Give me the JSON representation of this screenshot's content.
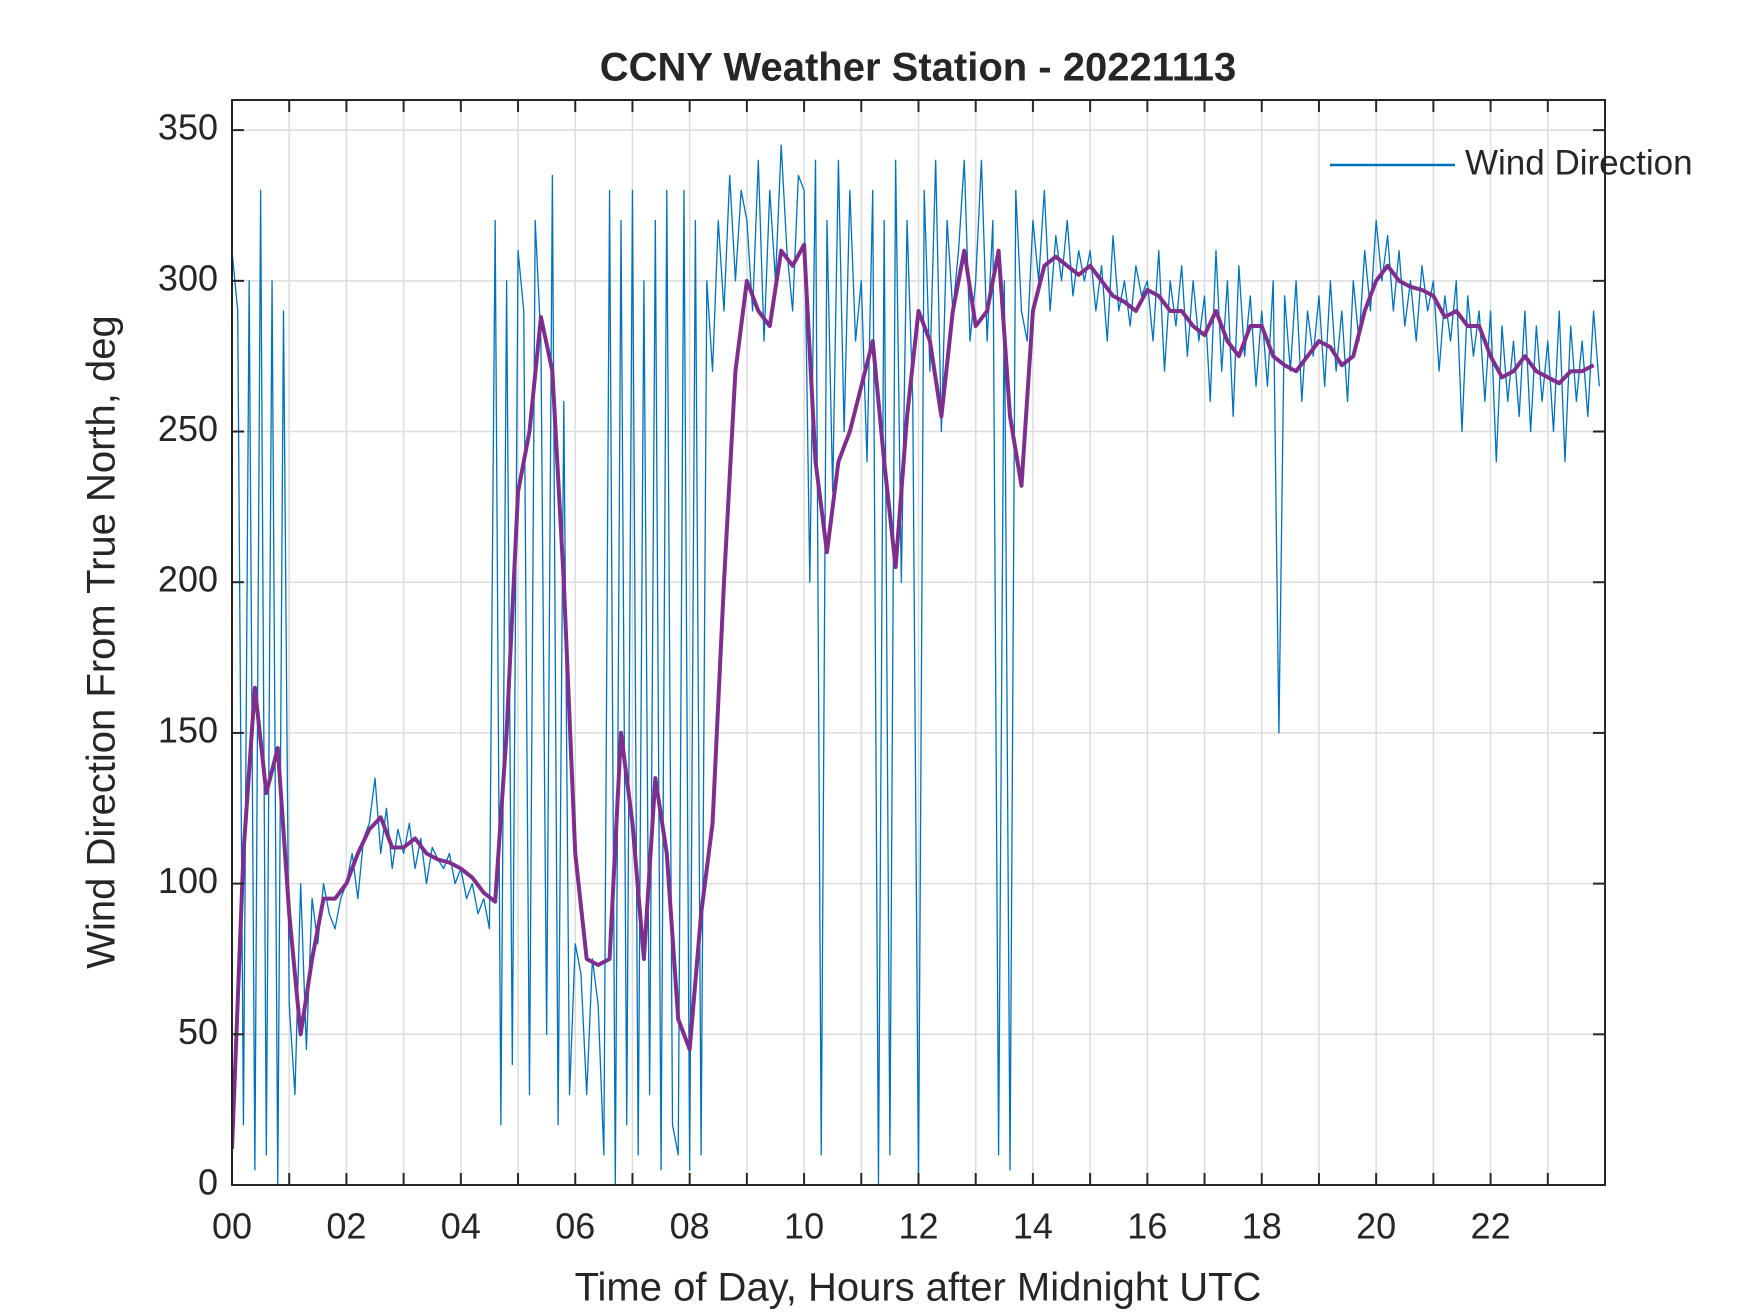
{
  "chart_data": {
    "type": "line",
    "title": "CCNY Weather Station - 20221113",
    "xlabel": "Time of Day, Hours after Midnight UTC",
    "ylabel": "Wind Direction From True North, deg",
    "xlim": [
      0,
      24
    ],
    "ylim": [
      0,
      360
    ],
    "xticks": [
      {
        "value": 0,
        "label": "00"
      },
      {
        "value": 2,
        "label": "02"
      },
      {
        "value": 4,
        "label": "04"
      },
      {
        "value": 6,
        "label": "06"
      },
      {
        "value": 8,
        "label": "08"
      },
      10,
      12,
      14,
      16,
      18,
      20,
      22
    ],
    "xminor_ticks": [
      1,
      3,
      5,
      7,
      9,
      11,
      13,
      15,
      17,
      19,
      21,
      23
    ],
    "yticks": [
      0,
      50,
      100,
      150,
      200,
      250,
      300,
      350
    ],
    "grid": true,
    "legend": "upper right",
    "series": [
      {
        "name": "Wind Direction",
        "color": "#0072bd",
        "width": 1.3,
        "x": [
          0,
          0.1,
          0.2,
          0.3,
          0.4,
          0.5,
          0.6,
          0.7,
          0.8,
          0.9,
          1,
          1.1,
          1.2,
          1.3,
          1.4,
          1.5,
          1.6,
          1.7,
          1.8,
          1.9,
          2,
          2.1,
          2.2,
          2.3,
          2.4,
          2.5,
          2.6,
          2.7,
          2.8,
          2.9,
          3,
          3.1,
          3.2,
          3.3,
          3.4,
          3.5,
          3.6,
          3.7,
          3.8,
          3.9,
          4,
          4.1,
          4.2,
          4.3,
          4.4,
          4.5,
          4.6,
          4.7,
          4.8,
          4.9,
          5,
          5.1,
          5.2,
          5.3,
          5.4,
          5.5,
          5.6,
          5.7,
          5.8,
          5.9,
          6,
          6.1,
          6.2,
          6.3,
          6.4,
          6.5,
          6.6,
          6.7,
          6.8,
          6.9,
          7,
          7.1,
          7.2,
          7.3,
          7.4,
          7.5,
          7.6,
          7.7,
          7.8,
          7.9,
          8,
          8.1,
          8.2,
          8.3,
          8.4,
          8.5,
          8.6,
          8.7,
          8.8,
          8.9,
          9,
          9.1,
          9.2,
          9.3,
          9.4,
          9.5,
          9.6,
          9.7,
          9.8,
          9.9,
          10,
          10.1,
          10.2,
          10.3,
          10.4,
          10.5,
          10.6,
          10.7,
          10.8,
          10.9,
          11,
          11.1,
          11.2,
          11.3,
          11.4,
          11.5,
          11.6,
          11.7,
          11.8,
          11.9,
          12,
          12.1,
          12.2,
          12.3,
          12.4,
          12.5,
          12.6,
          12.7,
          12.8,
          12.9,
          13,
          13.1,
          13.2,
          13.3,
          13.4,
          13.5,
          13.6,
          13.7,
          13.8,
          13.9,
          14,
          14.1,
          14.2,
          14.3,
          14.4,
          14.5,
          14.6,
          14.7,
          14.8,
          14.9,
          15,
          15.1,
          15.2,
          15.3,
          15.4,
          15.5,
          15.6,
          15.7,
          15.8,
          15.9,
          16,
          16.1,
          16.2,
          16.3,
          16.4,
          16.5,
          16.6,
          16.7,
          16.8,
          16.9,
          17,
          17.1,
          17.2,
          17.3,
          17.4,
          17.5,
          17.6,
          17.7,
          17.8,
          17.9,
          18,
          18.1,
          18.2,
          18.3,
          18.4,
          18.5,
          18.6,
          18.7,
          18.8,
          18.9,
          19,
          19.1,
          19.2,
          19.3,
          19.4,
          19.5,
          19.6,
          19.7,
          19.8,
          19.9,
          20,
          20.1,
          20.2,
          20.3,
          20.4,
          20.5,
          20.6,
          20.7,
          20.8,
          20.9,
          21,
          21.1,
          21.2,
          21.3,
          21.4,
          21.5,
          21.6,
          21.7,
          21.8,
          21.9,
          22,
          22.1,
          22.2,
          22.3,
          22.4,
          22.5,
          22.6,
          22.7,
          22.8,
          22.9,
          23,
          23.1,
          23.2,
          23.3,
          23.4,
          23.5,
          23.6,
          23.7,
          23.8,
          23.9
        ],
        "values": [
          310,
          290,
          20,
          300,
          5,
          330,
          10,
          300,
          0,
          290,
          60,
          30,
          100,
          45,
          95,
          80,
          100,
          90,
          85,
          95,
          100,
          110,
          95,
          115,
          120,
          135,
          110,
          125,
          105,
          118,
          110,
          120,
          105,
          115,
          100,
          112,
          108,
          105,
          110,
          100,
          105,
          95,
          100,
          90,
          95,
          85,
          320,
          20,
          300,
          40,
          310,
          290,
          30,
          320,
          280,
          50,
          335,
          20,
          260,
          30,
          80,
          70,
          30,
          75,
          60,
          10,
          330,
          0,
          320,
          20,
          330,
          10,
          300,
          30,
          320,
          5,
          330,
          20,
          10,
          330,
          5,
          320,
          10,
          300,
          270,
          320,
          290,
          335,
          300,
          330,
          320,
          290,
          340,
          280,
          330,
          300,
          345,
          310,
          290,
          335,
          330,
          200,
          340,
          10,
          320,
          230,
          340,
          250,
          330,
          280,
          300,
          240,
          330,
          0,
          320,
          10,
          340,
          200,
          320,
          260,
          0,
          330,
          270,
          340,
          250,
          320,
          290,
          310,
          340,
          280,
          300,
          340,
          280,
          320,
          10,
          300,
          5,
          330,
          290,
          280,
          320,
          300,
          330,
          290,
          315,
          300,
          320,
          295,
          310,
          300,
          310,
          290,
          305,
          280,
          315,
          290,
          300,
          285,
          305,
          295,
          300,
          280,
          310,
          270,
          300,
          285,
          305,
          275,
          300,
          280,
          295,
          260,
          310,
          270,
          300,
          255,
          305,
          275,
          295,
          265,
          290,
          265,
          300,
          150,
          295,
          270,
          300,
          260,
          290,
          275,
          295,
          265,
          300,
          270,
          290,
          260,
          300,
          280,
          310,
          290,
          320,
          300,
          315,
          290,
          310,
          285,
          300,
          280,
          305,
          290,
          300,
          270,
          295,
          280,
          300,
          250,
          295,
          275,
          290,
          260,
          290,
          240,
          285,
          260,
          280,
          255,
          290,
          250,
          285,
          260,
          280,
          250,
          290,
          240,
          285,
          260,
          280,
          255,
          290,
          265
        ]
      },
      {
        "color": "#7e2f8e",
        "width": 4,
        "x": [
          0,
          0.2,
          0.4,
          0.6,
          0.8,
          1,
          1.2,
          1.4,
          1.6,
          1.8,
          2,
          2.2,
          2.4,
          2.6,
          2.8,
          3,
          3.2,
          3.4,
          3.6,
          3.8,
          4,
          4.2,
          4.4,
          4.6,
          4.8,
          5,
          5.2,
          5.4,
          5.6,
          5.8,
          6,
          6.2,
          6.4,
          6.6,
          6.8,
          7,
          7.2,
          7.4,
          7.6,
          7.8,
          8,
          8.2,
          8.4,
          8.6,
          8.8,
          9,
          9.2,
          9.4,
          9.6,
          9.8,
          10,
          10.2,
          10.4,
          10.6,
          10.8,
          11,
          11.2,
          11.4,
          11.6,
          11.8,
          12,
          12.2,
          12.4,
          12.6,
          12.8,
          13,
          13.2,
          13.4,
          13.6,
          13.8,
          14,
          14.2,
          14.4,
          14.6,
          14.8,
          15,
          15.2,
          15.4,
          15.6,
          15.8,
          16,
          16.2,
          16.4,
          16.6,
          16.8,
          17,
          17.2,
          17.4,
          17.6,
          17.8,
          18,
          18.2,
          18.4,
          18.6,
          18.8,
          19,
          19.2,
          19.4,
          19.6,
          19.8,
          20,
          20.2,
          20.4,
          20.6,
          20.8,
          21,
          21.2,
          21.4,
          21.6,
          21.8,
          22,
          22.2,
          22.4,
          22.6,
          22.8,
          23,
          23.2,
          23.4,
          23.6,
          23.8
        ],
        "values": [
          12,
          110,
          165,
          130,
          145,
          90,
          50,
          75,
          95,
          95,
          100,
          110,
          118,
          122,
          112,
          112,
          115,
          110,
          108,
          107,
          105,
          102,
          97,
          94,
          150,
          230,
          250,
          288,
          270,
          200,
          110,
          75,
          73,
          75,
          150,
          120,
          75,
          135,
          110,
          55,
          45,
          90,
          120,
          200,
          270,
          300,
          290,
          285,
          310,
          305,
          312,
          240,
          210,
          240,
          250,
          265,
          280,
          240,
          205,
          255,
          290,
          280,
          255,
          290,
          310,
          285,
          290,
          310,
          255,
          232,
          290,
          305,
          308,
          305,
          302,
          305,
          300,
          295,
          293,
          290,
          297,
          295,
          290,
          290,
          285,
          282,
          290,
          280,
          275,
          285,
          285,
          275,
          272,
          270,
          275,
          280,
          278,
          272,
          275,
          290,
          300,
          305,
          300,
          298,
          297,
          295,
          288,
          290,
          285,
          285,
          275,
          268,
          270,
          275,
          270,
          268,
          266,
          270,
          270,
          272
        ]
      }
    ]
  }
}
